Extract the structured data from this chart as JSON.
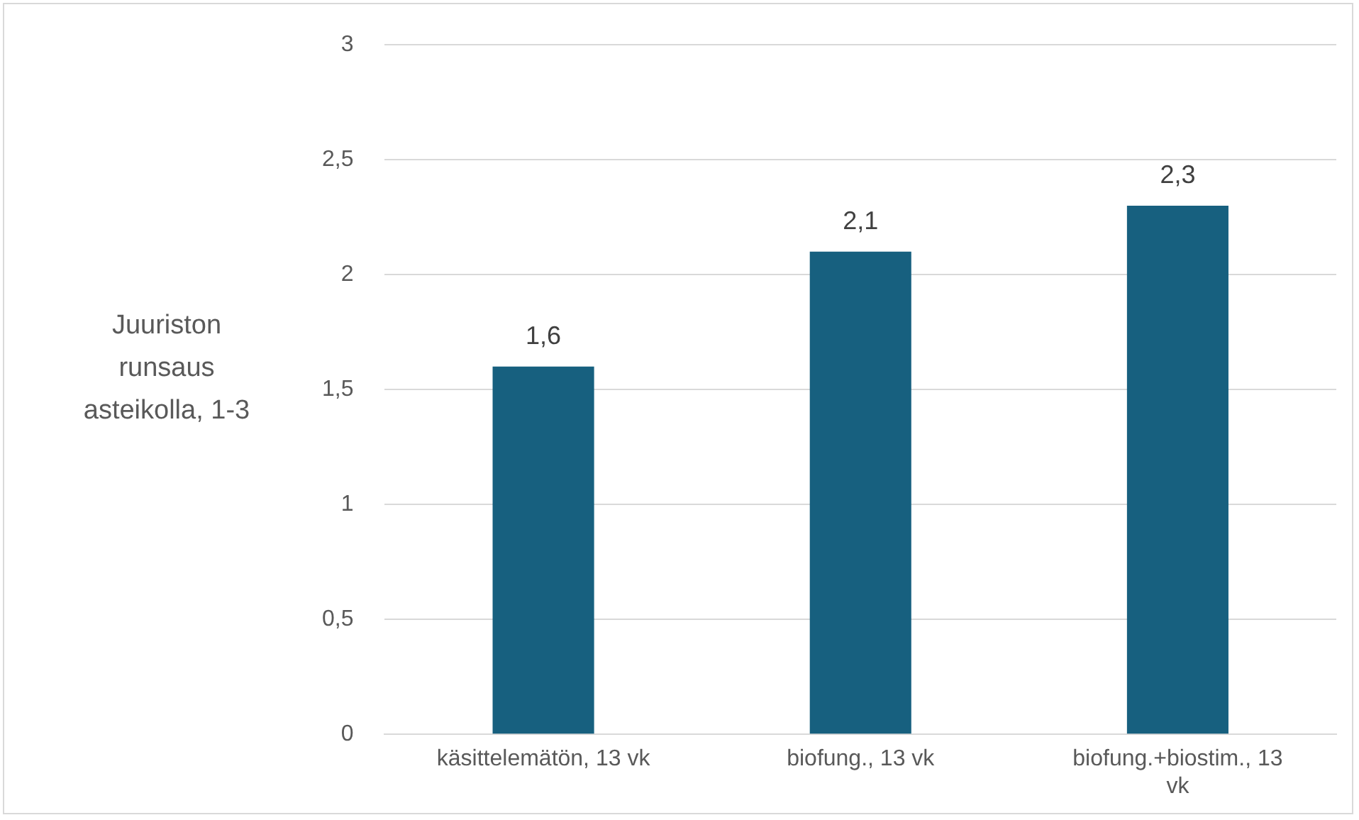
{
  "chart_data": {
    "type": "bar",
    "ylabel": "Juuriston runsaus asteikolla, 1-3",
    "categories": [
      "käsittelemätön, 13 vk",
      "biofung., 13 vk",
      "biofung.+biostim., 13 vk"
    ],
    "values": [
      1.6,
      2.1,
      2.3
    ],
    "color": "#17607f",
    "value_labels": [
      "1,6",
      "2,1",
      "2,3"
    ],
    "ylim": [
      0,
      3
    ],
    "yticks": [
      0,
      {
        "value": 0.5,
        "label": "0,5"
      },
      1,
      {
        "value": 1.5,
        "label": "1,5"
      },
      2,
      {
        "value": 2.5,
        "label": "2,5"
      },
      3
    ],
    "grid": "y",
    "legend": false
  }
}
